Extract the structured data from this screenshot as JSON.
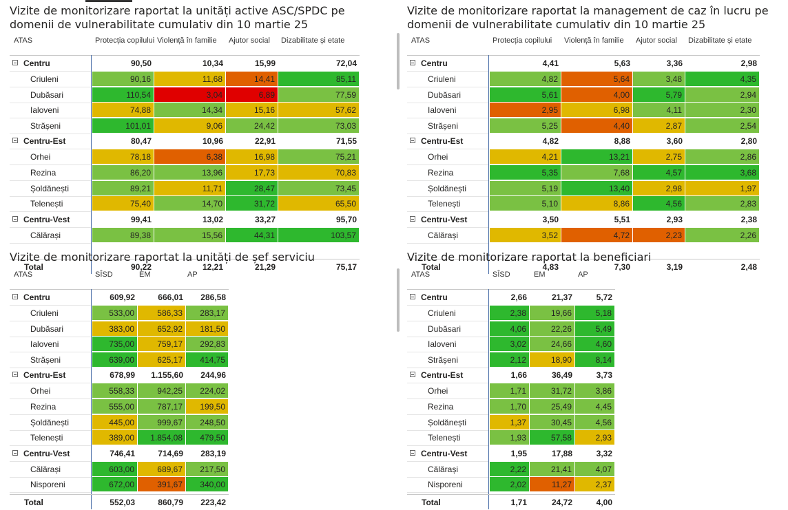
{
  "colors": {
    "green": "#2eb82e",
    "lgreen": "#7ac143",
    "yellow": "#e0b800",
    "orange": "#e06000",
    "red": "#e00000",
    "white": "#ffffff"
  },
  "panels": [
    {
      "title": "Vizite de monitorizare raportat la unități active ASC/SPDC pe domenii de vulnerabilitate cumulativ din 10 martie 25",
      "headers": [
        "ATAS",
        "Protecția copilului",
        "Violență în familie",
        "Ajutor social",
        "Dizabilitate și etate"
      ],
      "groups": [
        {
          "name": "Centru",
          "values": [
            "90,50",
            "10,34",
            "15,99",
            "72,04"
          ],
          "rows": [
            {
              "name": "Criuleni",
              "values": [
                "90,16",
                "11,68",
                "14,41",
                "85,11"
              ],
              "colors": [
                "lgreen",
                "yellow",
                "orange",
                "green"
              ]
            },
            {
              "name": "Dubăsari",
              "values": [
                "110,54",
                "3,04",
                "6,89",
                "77,59"
              ],
              "colors": [
                "green",
                "red",
                "red",
                "lgreen"
              ]
            },
            {
              "name": "Ialoveni",
              "values": [
                "74,88",
                "14,34",
                "15,16",
                "57,62"
              ],
              "colors": [
                "yellow",
                "lgreen",
                "yellow",
                "yellow"
              ]
            },
            {
              "name": "Strășeni",
              "values": [
                "101,01",
                "9,06",
                "24,42",
                "73,03"
              ],
              "colors": [
                "green",
                "yellow",
                "lgreen",
                "lgreen"
              ]
            }
          ]
        },
        {
          "name": "Centru-Est",
          "values": [
            "80,47",
            "10,96",
            "22,91",
            "71,55"
          ],
          "rows": [
            {
              "name": "Orhei",
              "values": [
                "78,18",
                "6,38",
                "16,98",
                "75,21"
              ],
              "colors": [
                "yellow",
                "orange",
                "yellow",
                "lgreen"
              ]
            },
            {
              "name": "Rezina",
              "values": [
                "86,20",
                "13,96",
                "17,73",
                "70,83"
              ],
              "colors": [
                "lgreen",
                "lgreen",
                "yellow",
                "yellow"
              ]
            },
            {
              "name": "Șoldănești",
              "values": [
                "89,21",
                "11,71",
                "28,47",
                "73,45"
              ],
              "colors": [
                "lgreen",
                "yellow",
                "green",
                "lgreen"
              ]
            },
            {
              "name": "Telenești",
              "values": [
                "75,40",
                "14,70",
                "31,72",
                "65,50"
              ],
              "colors": [
                "yellow",
                "lgreen",
                "green",
                "yellow"
              ]
            }
          ]
        },
        {
          "name": "Centru-Vest",
          "values": [
            "99,41",
            "13,02",
            "33,27",
            "95,70"
          ],
          "rows": [
            {
              "name": "Călărași",
              "values": [
                "89,38",
                "15,56",
                "44,31",
                "103,57"
              ],
              "colors": [
                "lgreen",
                "lgreen",
                "green",
                "green"
              ]
            }
          ]
        }
      ],
      "total": {
        "name": "Total",
        "values": [
          "90,22",
          "12,21",
          "21,29",
          "75,17"
        ]
      }
    },
    {
      "title": "Vizite de monitorizare raportat la management de caz în lucru pe domenii de vulnerabilitate cumulativ din 10 martie 25",
      "headers": [
        "ATAS",
        "Protecția copilului",
        "Violență în familie",
        "Ajutor social",
        "Dizabilitate și etate"
      ],
      "groups": [
        {
          "name": "Centru",
          "values": [
            "4,41",
            "5,63",
            "3,36",
            "2,98"
          ],
          "rows": [
            {
              "name": "Criuleni",
              "values": [
                "4,82",
                "5,64",
                "3,48",
                "4,35"
              ],
              "colors": [
                "lgreen",
                "orange",
                "lgreen",
                "green"
              ]
            },
            {
              "name": "Dubăsari",
              "values": [
                "5,61",
                "4,00",
                "5,79",
                "2,94"
              ],
              "colors": [
                "green",
                "orange",
                "green",
                "lgreen"
              ]
            },
            {
              "name": "Ialoveni",
              "values": [
                "2,95",
                "6,98",
                "4,11",
                "2,30"
              ],
              "colors": [
                "orange",
                "yellow",
                "lgreen",
                "lgreen"
              ]
            },
            {
              "name": "Strășeni",
              "values": [
                "5,25",
                "4,40",
                "2,87",
                "2,54"
              ],
              "colors": [
                "lgreen",
                "orange",
                "yellow",
                "lgreen"
              ]
            }
          ]
        },
        {
          "name": "Centru-Est",
          "values": [
            "4,82",
            "8,88",
            "3,60",
            "2,80"
          ],
          "rows": [
            {
              "name": "Orhei",
              "values": [
                "4,21",
                "13,21",
                "2,75",
                "2,86"
              ],
              "colors": [
                "yellow",
                "green",
                "yellow",
                "lgreen"
              ]
            },
            {
              "name": "Rezina",
              "values": [
                "5,35",
                "7,68",
                "4,57",
                "3,68"
              ],
              "colors": [
                "green",
                "lgreen",
                "green",
                "green"
              ]
            },
            {
              "name": "Șoldănești",
              "values": [
                "5,19",
                "13,40",
                "2,98",
                "1,97"
              ],
              "colors": [
                "lgreen",
                "green",
                "yellow",
                "yellow"
              ]
            },
            {
              "name": "Telenești",
              "values": [
                "5,10",
                "8,86",
                "4,56",
                "2,83"
              ],
              "colors": [
                "lgreen",
                "yellow",
                "green",
                "lgreen"
              ]
            }
          ]
        },
        {
          "name": "Centru-Vest",
          "values": [
            "3,50",
            "5,51",
            "2,93",
            "2,38"
          ],
          "rows": [
            {
              "name": "Călărași",
              "values": [
                "3,52",
                "4,72",
                "2,23",
                "2,26"
              ],
              "colors": [
                "yellow",
                "orange",
                "orange",
                "lgreen"
              ]
            }
          ]
        }
      ],
      "total": {
        "name": "Total",
        "values": [
          "4,83",
          "7,30",
          "3,19",
          "2,48"
        ]
      }
    },
    {
      "title": "Vizite de monitorizare raportat la unități de șef serviciu",
      "headers": [
        "ATAS",
        "SÎSD",
        "EM",
        "AP"
      ],
      "groups": [
        {
          "name": "Centru",
          "values": [
            "609,92",
            "666,01",
            "286,58"
          ],
          "rows": [
            {
              "name": "Criuleni",
              "values": [
                "533,00",
                "586,33",
                "283,17"
              ],
              "colors": [
                "lgreen",
                "yellow",
                "lgreen"
              ]
            },
            {
              "name": "Dubăsari",
              "values": [
                "383,00",
                "652,92",
                "181,50"
              ],
              "colors": [
                "yellow",
                "yellow",
                "yellow"
              ]
            },
            {
              "name": "Ialoveni",
              "values": [
                "735,00",
                "759,17",
                "292,83"
              ],
              "colors": [
                "green",
                "yellow",
                "lgreen"
              ]
            },
            {
              "name": "Strășeni",
              "values": [
                "639,00",
                "625,17",
                "414,75"
              ],
              "colors": [
                "green",
                "yellow",
                "green"
              ]
            }
          ]
        },
        {
          "name": "Centru-Est",
          "values": [
            "678,99",
            "1.155,60",
            "244,96"
          ],
          "rows": [
            {
              "name": "Orhei",
              "values": [
                "558,33",
                "942,25",
                "224,02"
              ],
              "colors": [
                "lgreen",
                "lgreen",
                "lgreen"
              ]
            },
            {
              "name": "Rezina",
              "values": [
                "555,00",
                "787,17",
                "199,50"
              ],
              "colors": [
                "lgreen",
                "lgreen",
                "yellow"
              ]
            },
            {
              "name": "Șoldănești",
              "values": [
                "445,00",
                "999,67",
                "248,50"
              ],
              "colors": [
                "yellow",
                "lgreen",
                "lgreen"
              ]
            },
            {
              "name": "Telenești",
              "values": [
                "389,00",
                "1.854,08",
                "479,50"
              ],
              "colors": [
                "yellow",
                "green",
                "green"
              ]
            }
          ]
        },
        {
          "name": "Centru-Vest",
          "values": [
            "746,41",
            "714,69",
            "283,19"
          ],
          "rows": [
            {
              "name": "Călărași",
              "values": [
                "603,00",
                "689,67",
                "217,50"
              ],
              "colors": [
                "green",
                "yellow",
                "lgreen"
              ]
            },
            {
              "name": "Nisporeni",
              "values": [
                "672,00",
                "391,67",
                "340,00"
              ],
              "colors": [
                "green",
                "orange",
                "green"
              ]
            }
          ]
        }
      ],
      "total": {
        "name": "Total",
        "values": [
          "552,03",
          "860,79",
          "223,42"
        ]
      }
    },
    {
      "title": "Vizite de monitorizare raportat la beneficiari",
      "headers": [
        "ATAS",
        "SÎSD",
        "EM",
        "AP"
      ],
      "groups": [
        {
          "name": "Centru",
          "values": [
            "2,66",
            "21,37",
            "5,72"
          ],
          "rows": [
            {
              "name": "Criuleni",
              "values": [
                "2,38",
                "19,66",
                "5,18"
              ],
              "colors": [
                "green",
                "lgreen",
                "green"
              ]
            },
            {
              "name": "Dubăsari",
              "values": [
                "4,06",
                "22,26",
                "5,49"
              ],
              "colors": [
                "green",
                "lgreen",
                "green"
              ]
            },
            {
              "name": "Ialoveni",
              "values": [
                "3,02",
                "24,66",
                "4,60"
              ],
              "colors": [
                "green",
                "lgreen",
                "green"
              ]
            },
            {
              "name": "Strășeni",
              "values": [
                "2,12",
                "18,90",
                "8,14"
              ],
              "colors": [
                "green",
                "yellow",
                "green"
              ]
            }
          ]
        },
        {
          "name": "Centru-Est",
          "values": [
            "1,66",
            "36,49",
            "3,73"
          ],
          "rows": [
            {
              "name": "Orhei",
              "values": [
                "1,71",
                "31,72",
                "3,86"
              ],
              "colors": [
                "lgreen",
                "lgreen",
                "lgreen"
              ]
            },
            {
              "name": "Rezina",
              "values": [
                "1,70",
                "25,49",
                "4,45"
              ],
              "colors": [
                "lgreen",
                "lgreen",
                "lgreen"
              ]
            },
            {
              "name": "Șoldănești",
              "values": [
                "1,37",
                "30,45",
                "4,56"
              ],
              "colors": [
                "yellow",
                "lgreen",
                "lgreen"
              ]
            },
            {
              "name": "Telenești",
              "values": [
                "1,93",
                "57,58",
                "2,93"
              ],
              "colors": [
                "lgreen",
                "green",
                "yellow"
              ]
            }
          ]
        },
        {
          "name": "Centru-Vest",
          "values": [
            "1,95",
            "17,88",
            "3,32"
          ],
          "rows": [
            {
              "name": "Călărași",
              "values": [
                "2,22",
                "21,41",
                "4,07"
              ],
              "colors": [
                "green",
                "lgreen",
                "lgreen"
              ]
            },
            {
              "name": "Nisporeni",
              "values": [
                "2,02",
                "11,27",
                "2,37"
              ],
              "colors": [
                "green",
                "orange",
                "yellow"
              ]
            }
          ]
        }
      ],
      "total": {
        "name": "Total",
        "values": [
          "1,71",
          "24,72",
          "4,00"
        ]
      }
    }
  ]
}
